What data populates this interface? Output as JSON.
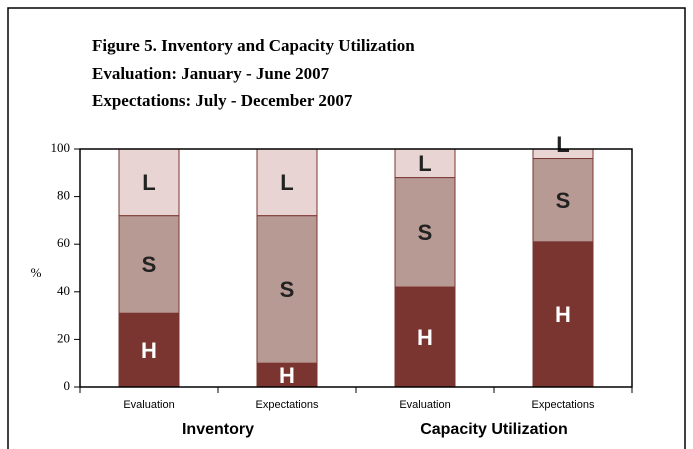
{
  "chart_data": {
    "type": "stacked_bar",
    "title": "Figure 5. Inventory and Capacity Utilization",
    "subtitle": "Evaluation: January - June 2007",
    "subtitle2": "Expectations: July - December 2007",
    "y_label": "%",
    "categories": [
      "Evaluation",
      "Expectations",
      "Evaluation",
      "Expectations"
    ],
    "group_labels": [
      "Inventory",
      "Capacity Utilization"
    ],
    "series": [
      {
        "name": "H",
        "color": "#7a3530",
        "values": [
          31,
          10,
          42,
          61
        ]
      },
      {
        "name": "S",
        "color": "#b89a94",
        "values": [
          41,
          62,
          46,
          35
        ]
      },
      {
        "name": "L",
        "color": "#e8d5d3",
        "values": [
          28,
          28,
          12,
          4
        ]
      }
    ],
    "ylim": [
      0,
      100
    ],
    "yticks": [
      0,
      20,
      40,
      60,
      80,
      100
    ]
  }
}
